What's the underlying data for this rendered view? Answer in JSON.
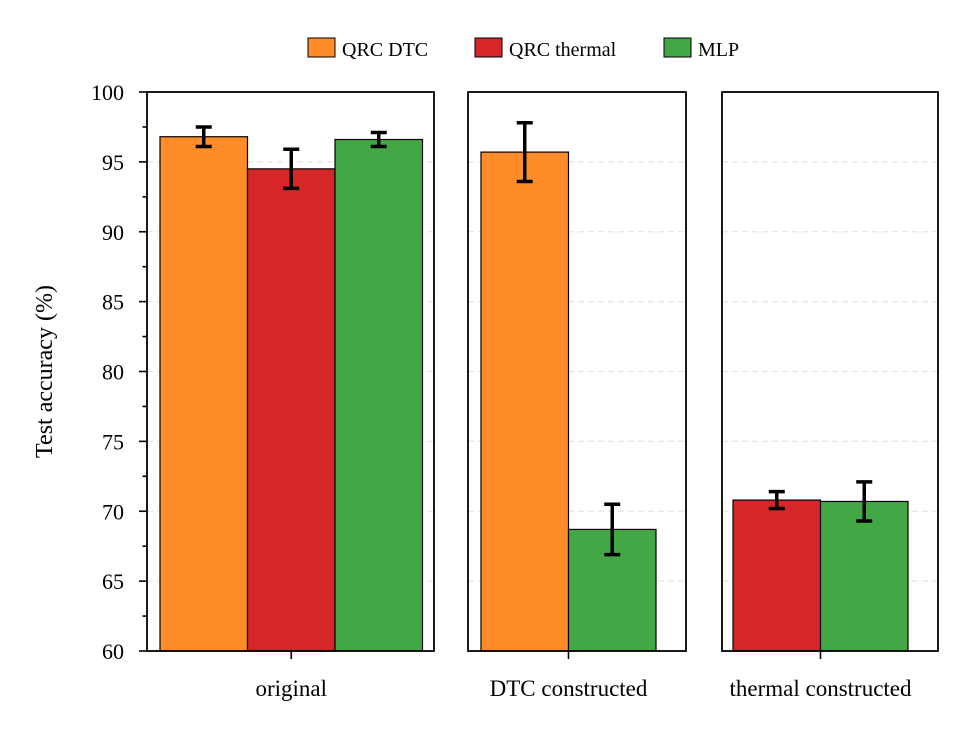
{
  "chart_data": {
    "type": "bar",
    "ylabel": "Test accuracy (%)",
    "ylim": [
      60,
      100
    ],
    "yticks": [
      60,
      65,
      70,
      75,
      80,
      85,
      90,
      95,
      100
    ],
    "grid": true,
    "legend": {
      "placement": "top-center",
      "entries": [
        {
          "name": "QRC DTC",
          "color": "#FF8C28"
        },
        {
          "name": "QRC thermal",
          "color": "#D62728"
        },
        {
          "name": "MLP",
          "color": "#42A845"
        }
      ]
    },
    "groups": [
      {
        "label": "original",
        "bars": [
          {
            "series": "QRC DTC",
            "value": 96.8,
            "error": 0.7
          },
          {
            "series": "QRC thermal",
            "value": 94.5,
            "error": 1.4
          },
          {
            "series": "MLP",
            "value": 96.6,
            "error": 0.5
          }
        ]
      },
      {
        "label": "DTC constructed",
        "bars": [
          {
            "series": "QRC DTC",
            "value": 95.7,
            "error": 2.1
          },
          {
            "series": "MLP",
            "value": 68.7,
            "error": 1.8
          }
        ]
      },
      {
        "label": "thermal constructed",
        "bars": [
          {
            "series": "QRC thermal",
            "value": 70.8,
            "error": 0.6
          },
          {
            "series": "MLP",
            "value": 70.7,
            "error": 1.4
          }
        ]
      }
    ]
  }
}
